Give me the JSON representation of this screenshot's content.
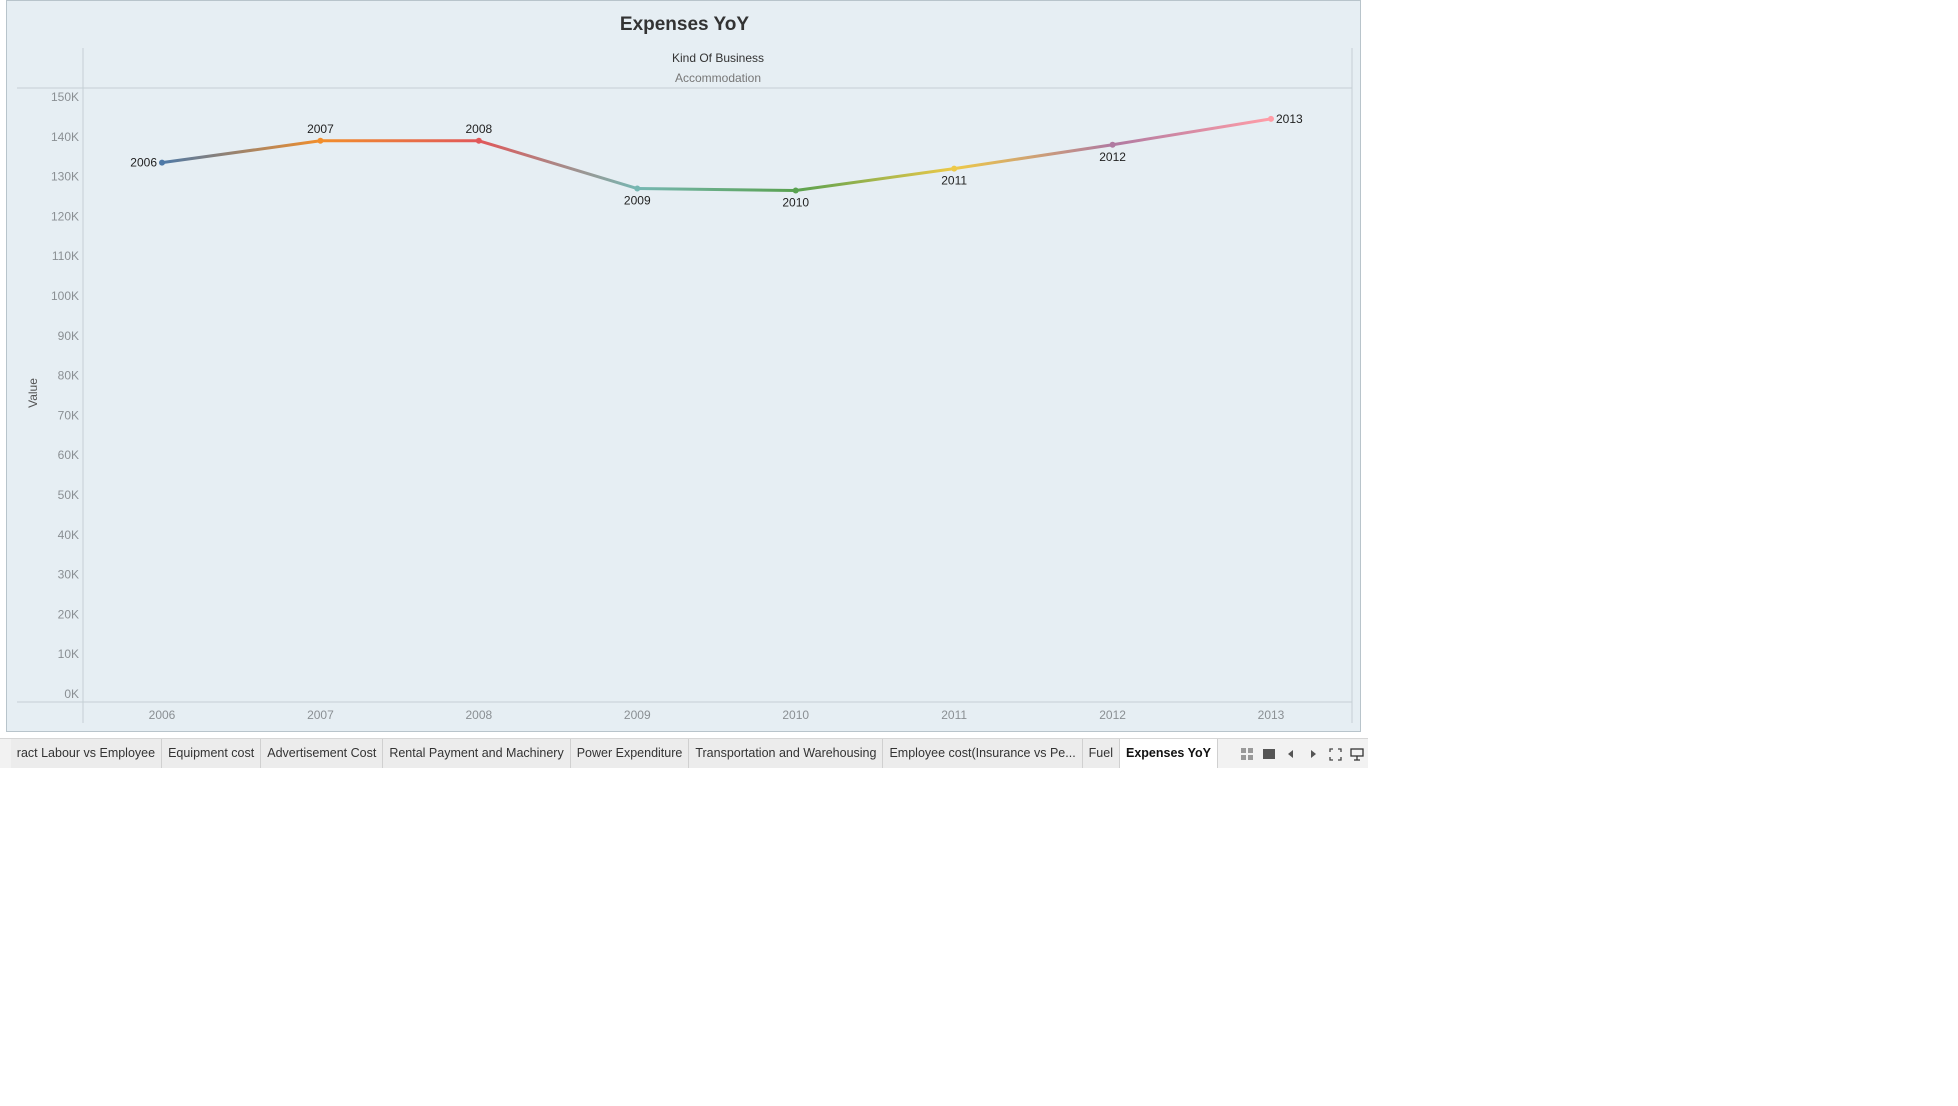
{
  "chart_data": {
    "type": "line",
    "title": "Expenses YoY",
    "header": {
      "field": "Kind Of Business",
      "value": "Accommodation"
    },
    "ylabel": "Value",
    "xlabel": "",
    "x": [
      "2006",
      "2007",
      "2008",
      "2009",
      "2010",
      "2011",
      "2012",
      "2013"
    ],
    "values": [
      133500,
      139000,
      139000,
      127000,
      126500,
      132000,
      138000,
      144500
    ],
    "colors": [
      "#4e79a7",
      "#f28e2b",
      "#e15759",
      "#76b7b2",
      "#59a14f",
      "#edc948",
      "#b07aa1",
      "#ff9da7"
    ],
    "label_position": [
      "left",
      "above",
      "above",
      "below",
      "below",
      "below",
      "below",
      "right"
    ],
    "ylim": [
      0,
      150000
    ],
    "yticks": [
      0,
      10000,
      20000,
      30000,
      40000,
      50000,
      60000,
      70000,
      80000,
      90000,
      100000,
      110000,
      120000,
      130000,
      140000,
      150000
    ],
    "ytick_labels": [
      "0K",
      "10K",
      "20K",
      "30K",
      "40K",
      "50K",
      "60K",
      "70K",
      "80K",
      "90K",
      "100K",
      "110K",
      "120K",
      "130K",
      "140K",
      "150K"
    ],
    "grid": false,
    "legend": "none"
  },
  "tabs": [
    {
      "label": "ract Labour vs Employee",
      "active": false
    },
    {
      "label": "Equipment cost",
      "active": false
    },
    {
      "label": "Advertisement Cost",
      "active": false
    },
    {
      "label": "Rental Payment and Machinery",
      "active": false
    },
    {
      "label": "Power Expenditure",
      "active": false
    },
    {
      "label": "Transportation and Warehousing",
      "active": false
    },
    {
      "label": "Employee cost(Insurance vs Pe...",
      "active": false
    },
    {
      "label": "Fuel",
      "active": false
    },
    {
      "label": "Expenses YoY",
      "active": true
    }
  ],
  "controls": [
    "grid-view-icon",
    "filmstrip-icon",
    "prev-sheet-icon",
    "next-sheet-icon",
    "fullscreen-icon",
    "presentation-icon"
  ]
}
